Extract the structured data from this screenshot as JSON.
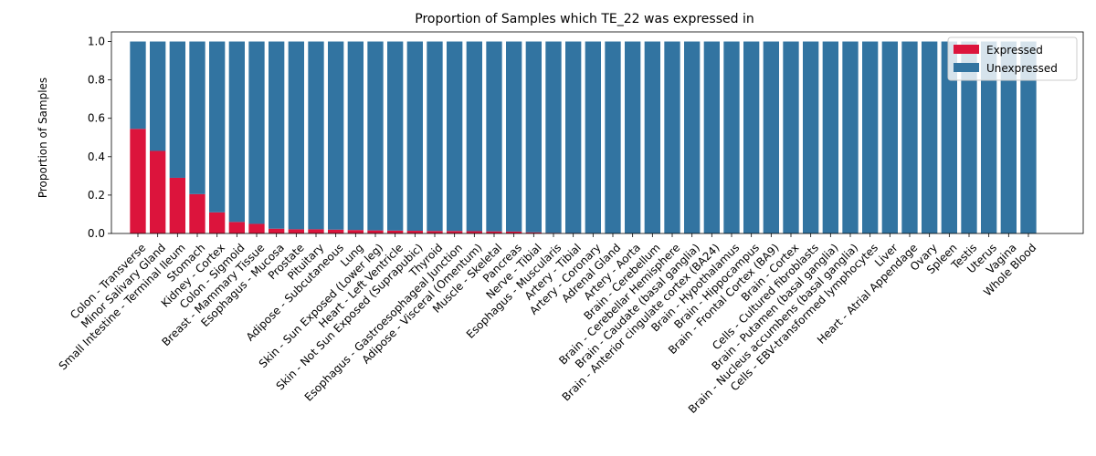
{
  "chart_data": {
    "type": "bar",
    "stacked": true,
    "title": "Proportion of Samples which TE_22 was expressed in",
    "xlabel": "",
    "ylabel": "Proportion of Samples",
    "ylim": [
      0,
      1.05
    ],
    "yticks": [
      "0.0",
      "0.2",
      "0.4",
      "0.6",
      "0.8",
      "1.0"
    ],
    "grid": false,
    "legend_position": "top-right",
    "categories": [
      "Colon - Transverse",
      "Minor Salivary Gland",
      "Small Intestine - Terminal Ileum",
      "Stomach",
      "Kidney - Cortex",
      "Colon - Sigmoid",
      "Breast - Mammary Tissue",
      "Esophagus - Mucosa",
      "Prostate",
      "Pituitary",
      "Adipose - Subcutaneous",
      "Lung",
      "Skin - Sun Exposed (Lower leg)",
      "Heart - Left Ventricle",
      "Skin - Not Sun Exposed (Suprapubic)",
      "Thyroid",
      "Esophagus - Gastroesophageal Junction",
      "Adipose - Visceral (Omentum)",
      "Muscle - Skeletal",
      "Pancreas",
      "Nerve - Tibial",
      "Esophagus - Muscularis",
      "Artery - Tibial",
      "Artery - Coronary",
      "Adrenal Gland",
      "Artery - Aorta",
      "Brain - Cerebellum",
      "Brain - Cerebellar Hemisphere",
      "Brain - Caudate (basal ganglia)",
      "Brain - Anterior cingulate cortex (BA24)",
      "Brain - Hypothalamus",
      "Brain - Hippocampus",
      "Brain - Frontal Cortex (BA9)",
      "Brain - Cortex",
      "Cells - Cultured fibroblasts",
      "Brain - Putamen (basal ganglia)",
      "Brain - Nucleus accumbens (basal ganglia)",
      "Cells - EBV-transformed lymphocytes",
      "Liver",
      "Heart - Atrial Appendage",
      "Ovary",
      "Spleen",
      "Testis",
      "Uterus",
      "Vagina",
      "Whole Blood"
    ],
    "series": [
      {
        "name": "Expressed",
        "color": "#dc143c",
        "values": [
          0.545,
          0.43,
          0.29,
          0.205,
          0.11,
          0.06,
          0.05,
          0.025,
          0.022,
          0.022,
          0.02,
          0.018,
          0.016,
          0.015,
          0.014,
          0.013,
          0.013,
          0.012,
          0.011,
          0.01,
          0.006,
          0.003,
          0.002,
          0.001,
          0,
          0,
          0,
          0,
          0,
          0,
          0,
          0,
          0,
          0,
          0,
          0,
          0,
          0,
          0,
          0,
          0,
          0,
          0,
          0,
          0,
          0
        ]
      },
      {
        "name": "Unexpressed",
        "color": "#3274a1",
        "values": [
          0.455,
          0.57,
          0.71,
          0.795,
          0.89,
          0.94,
          0.95,
          0.975,
          0.978,
          0.978,
          0.98,
          0.982,
          0.984,
          0.985,
          0.986,
          0.987,
          0.987,
          0.988,
          0.989,
          0.99,
          0.994,
          0.997,
          0.998,
          0.999,
          1,
          1,
          1,
          1,
          1,
          1,
          1,
          1,
          1,
          1,
          1,
          1,
          1,
          1,
          1,
          1,
          1,
          1,
          1,
          1,
          1,
          1
        ]
      }
    ]
  }
}
